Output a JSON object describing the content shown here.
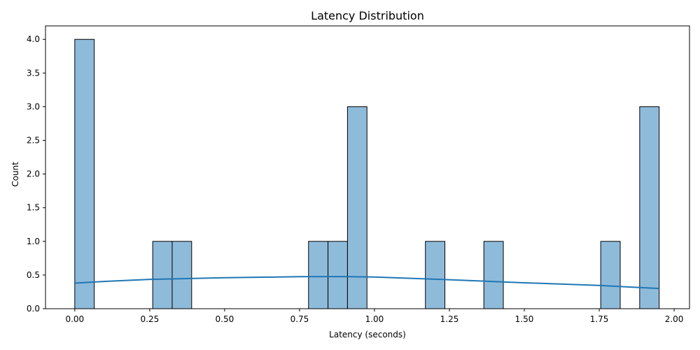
{
  "chart_data": {
    "type": "bar",
    "title": "Latency Distribution",
    "xlabel": "Latency (seconds)",
    "ylabel": "Count",
    "xlim": [
      -0.0977,
      2.0512
    ],
    "ylim": [
      0,
      4.2
    ],
    "x_ticks": [
      0.0,
      0.25,
      0.5,
      0.75,
      1.0,
      1.25,
      1.5,
      1.75,
      2.0
    ],
    "x_tick_labels": [
      "0.00",
      "0.25",
      "0.50",
      "0.75",
      "1.00",
      "1.25",
      "1.50",
      "1.75",
      "2.00"
    ],
    "y_ticks": [
      0,
      0.5,
      1,
      1.5,
      2,
      2.5,
      3,
      3.5,
      4
    ],
    "y_tick_labels": [
      "0.0",
      "0.5",
      "1.0",
      "1.5",
      "2.0",
      "2.5",
      "3.0",
      "3.5",
      "4.0"
    ],
    "grid": false,
    "bars": [
      {
        "x0": 0.0,
        "x1": 0.065,
        "count": 4
      },
      {
        "x0": 0.26,
        "x1": 0.325,
        "count": 1
      },
      {
        "x0": 0.325,
        "x1": 0.39,
        "count": 1
      },
      {
        "x0": 0.78,
        "x1": 0.845,
        "count": 1
      },
      {
        "x0": 0.845,
        "x1": 0.91,
        "count": 1
      },
      {
        "x0": 0.91,
        "x1": 0.975,
        "count": 3
      },
      {
        "x0": 1.17,
        "x1": 1.235,
        "count": 1
      },
      {
        "x0": 1.365,
        "x1": 1.43,
        "count": 1
      },
      {
        "x0": 1.755,
        "x1": 1.82,
        "count": 1
      },
      {
        "x0": 1.885,
        "x1": 1.95,
        "count": 3
      }
    ],
    "kde": {
      "x": [
        0.0,
        0.1,
        0.25,
        0.5,
        0.75,
        0.9,
        1.0,
        1.25,
        1.5,
        1.75,
        1.95
      ],
      "y": [
        0.38,
        0.405,
        0.435,
        0.46,
        0.475,
        0.477,
        0.47,
        0.43,
        0.385,
        0.345,
        0.3
      ]
    },
    "colors": {
      "bar_fill": "#8fbbdb",
      "bar_edge": "#000000",
      "kde_line": "#1f77b4"
    }
  }
}
